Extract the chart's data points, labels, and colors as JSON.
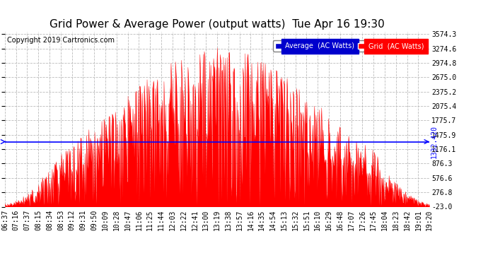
{
  "title": "Grid Power & Average Power (output watts)  Tue Apr 16 19:30",
  "copyright": "Copyright 2019 Cartronics.com",
  "ymin": -23.0,
  "ymax": 3574.3,
  "average_value": 1332.42,
  "yticks": [
    3574.3,
    3274.6,
    2974.8,
    2675.0,
    2375.2,
    2075.4,
    1775.7,
    1475.9,
    1176.1,
    876.3,
    576.6,
    276.8,
    -23.0
  ],
  "xtick_labels": [
    "06:37",
    "07:16",
    "07:37",
    "08:15",
    "08:34",
    "08:53",
    "09:12",
    "09:31",
    "09:50",
    "10:09",
    "10:28",
    "10:47",
    "11:06",
    "11:25",
    "11:44",
    "12:03",
    "12:22",
    "12:41",
    "13:00",
    "13:19",
    "13:38",
    "13:57",
    "14:16",
    "14:35",
    "14:54",
    "15:13",
    "15:32",
    "15:51",
    "16:10",
    "16:29",
    "16:48",
    "17:07",
    "17:26",
    "17:45",
    "18:04",
    "18:23",
    "18:42",
    "19:01",
    "19:20"
  ],
  "bg_color": "#ffffff",
  "grid_color": "#bbbbbb",
  "fill_color": "#ff0000",
  "line_color": "#ff0000",
  "avg_line_color": "#0000ff",
  "legend_avg_bg": "#0000cd",
  "legend_grid_bg": "#ff0000",
  "title_fontsize": 11,
  "tick_fontsize": 7,
  "copyright_fontsize": 7
}
